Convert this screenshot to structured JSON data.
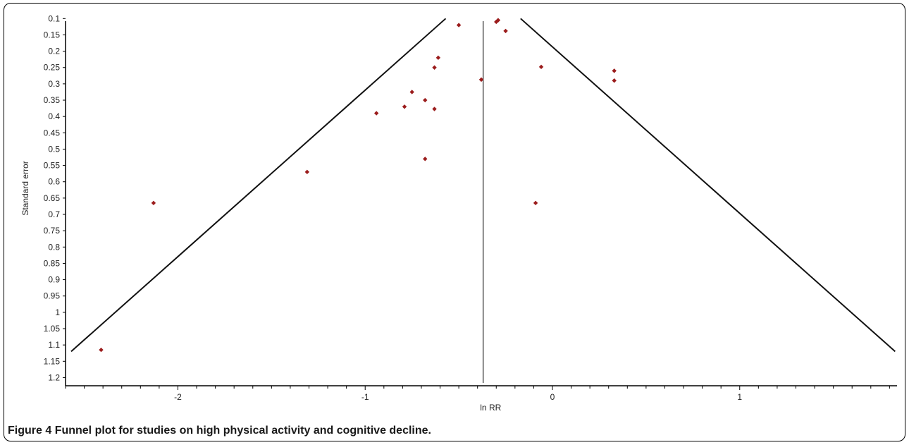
{
  "chart_data": {
    "type": "scatter",
    "xlabel": "ln RR",
    "ylabel": "Standard error",
    "xlim": [
      -2.6,
      1.84
    ],
    "ylim": [
      1.225,
      0.095
    ],
    "y_inverted": true,
    "x_ticks": [
      -2,
      -1,
      0,
      1
    ],
    "y_ticks": [
      0.1,
      0.15,
      0.2,
      0.25,
      0.3,
      0.35,
      0.4,
      0.45,
      0.5,
      0.55,
      0.6,
      0.65,
      0.7,
      0.75,
      0.8,
      0.85,
      0.9,
      0.95,
      1,
      1.05,
      1.1,
      1.15,
      1.2
    ],
    "pooled_estimate": -0.37,
    "funnel_limits": {
      "left": [
        [
          -0.57,
          0.1
        ],
        [
          -2.57,
          1.12
        ]
      ],
      "right": [
        [
          -0.17,
          0.1
        ],
        [
          1.83,
          1.12
        ]
      ]
    },
    "points_color": "#9b1c1c",
    "points": [
      {
        "x": -0.3,
        "y": 0.11
      },
      {
        "x": -0.29,
        "y": 0.105
      },
      {
        "x": -0.5,
        "y": 0.12
      },
      {
        "x": -0.25,
        "y": 0.138
      },
      {
        "x": -0.61,
        "y": 0.22
      },
      {
        "x": -0.63,
        "y": 0.25
      },
      {
        "x": -0.06,
        "y": 0.248
      },
      {
        "x": 0.33,
        "y": 0.26
      },
      {
        "x": 0.33,
        "y": 0.29
      },
      {
        "x": -0.38,
        "y": 0.287
      },
      {
        "x": -0.75,
        "y": 0.325
      },
      {
        "x": -0.68,
        "y": 0.35
      },
      {
        "x": -0.79,
        "y": 0.37
      },
      {
        "x": -0.63,
        "y": 0.377
      },
      {
        "x": -0.94,
        "y": 0.39
      },
      {
        "x": -0.68,
        "y": 0.53
      },
      {
        "x": -1.31,
        "y": 0.57
      },
      {
        "x": -2.13,
        "y": 0.665
      },
      {
        "x": -0.09,
        "y": 0.665
      },
      {
        "x": -2.41,
        "y": 1.115
      }
    ]
  },
  "caption": {
    "label": "Figure 4",
    "text": "Funnel plot for studies on high physical activity and cognitive decline."
  }
}
